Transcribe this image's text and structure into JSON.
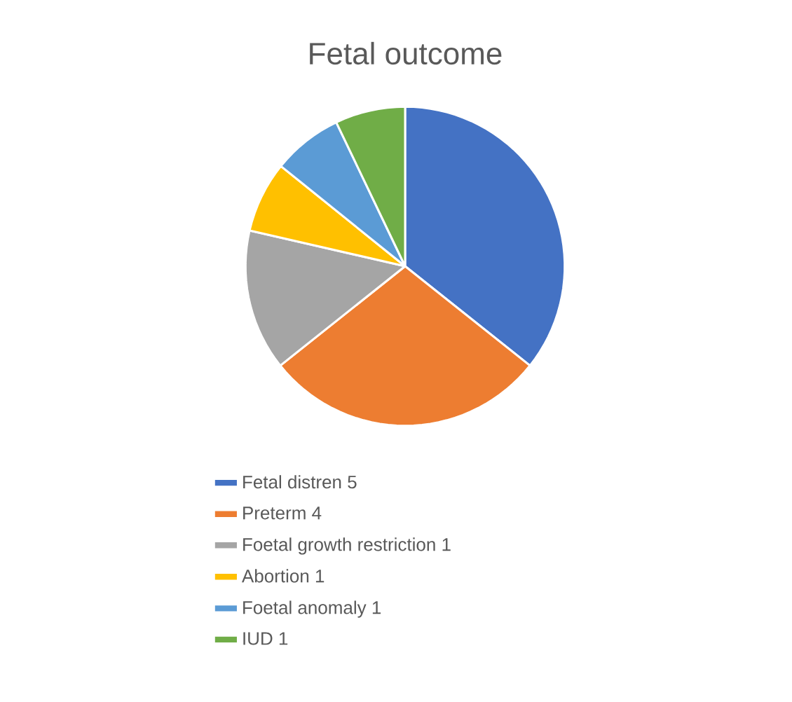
{
  "chart_data": {
    "type": "pie",
    "title": "Fetal outcome",
    "categories": [
      "Fetal distren 5",
      "Preterm 4",
      "Foetal growth restriction 1",
      "Abortion 1",
      "Foetal anomaly 1",
      "IUD 1"
    ],
    "values": [
      35.7,
      28.6,
      14.3,
      7.2,
      7.1,
      7.1
    ],
    "colors": [
      "#4472c4",
      "#ed7d31",
      "#a5a5a5",
      "#ffc000",
      "#5b9bd5",
      "#70ad47"
    ],
    "legend": "bottom"
  }
}
